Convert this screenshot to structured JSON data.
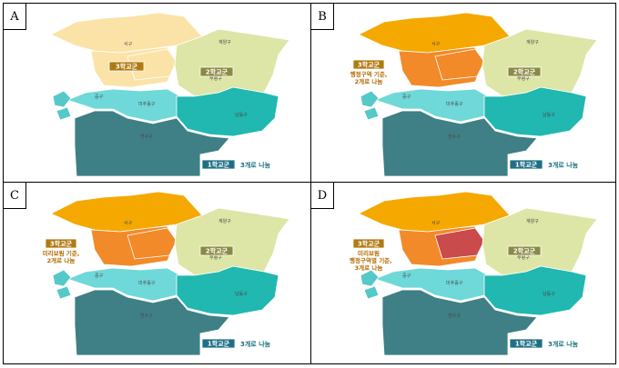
{
  "panels": [
    {
      "letter": "A",
      "group3_label": "3학교군",
      "group2_label": "2학교군",
      "group1_label": "1학교군",
      "group1_note": "3개로 나눔",
      "group3_note": [],
      "districts": {
        "seo": "서구",
        "gyeyang": "계양구",
        "bupyeong": "부평구",
        "jung": "중구",
        "michuhol": "미추홀구",
        "namdong": "남동구",
        "yeonsu": "연수구"
      },
      "colors": {
        "north": "#fbe3a8",
        "mid": "#fbe3a8",
        "center": "#fbe3a8",
        "east": "#dde6a6"
      }
    },
    {
      "letter": "B",
      "group3_label": "3학교군",
      "group2_label": "2학교군",
      "group1_label": "1학교군",
      "group1_note": "3개로 나눔",
      "group3_note": [
        "행정구역 기준,",
        "2개로 나눔"
      ],
      "districts": {
        "seo": "서구",
        "gyeyang": "계양구",
        "bupyeong": "부평구",
        "jung": "중구",
        "michuhol": "미추홀구",
        "namdong": "남동구",
        "yeonsu": "연수구"
      },
      "colors": {
        "north": "#f5a800",
        "mid": "#f28a2a",
        "center": "#f28a2a",
        "east": "#dde6a6"
      }
    },
    {
      "letter": "C",
      "group3_label": "3학교군",
      "group2_label": "2학교군",
      "group1_label": "1학교군",
      "group1_note": "3개로 나눔",
      "group3_note": [
        "미리보림 기준,",
        "2개로 나눔"
      ],
      "districts": {
        "seo": "서구",
        "gyeyang": "계양구",
        "bupyeong": "부평구",
        "jung": "중구",
        "michuhol": "미추홀구",
        "namdong": "남동구",
        "yeonsu": "연수구"
      },
      "colors": {
        "north": "#f5a800",
        "mid": "#f28a2a",
        "center": "#f28a2a",
        "east": "#dde6a6"
      }
    },
    {
      "letter": "D",
      "group3_label": "3학교군",
      "group2_label": "2학교군",
      "group1_label": "1학교군",
      "group1_note": "3개로 나눔",
      "group3_note": [
        "미리보림",
        "/ 행정구역별 기준,",
        "3개로 나눔"
      ],
      "districts": {
        "seo": "서구",
        "gyeyang": "계양구",
        "bupyeong": "부평구",
        "jung": "중구",
        "michuhol": "미추홀구",
        "namdong": "남동구",
        "yeonsu": "연수구"
      },
      "colors": {
        "north": "#f5a800",
        "mid": "#f28a2a",
        "center": "#c94b4b",
        "east": "#dde6a6"
      }
    }
  ],
  "style": {
    "group3_badge": "#b07a10",
    "group2_badge": "#8a8a44",
    "group1_badge": "#1e6f86",
    "south_light": "#6fd8d8",
    "south_teal": "#20b8b0",
    "south_dark": "#3f7f86",
    "island": "#55c8c8"
  }
}
